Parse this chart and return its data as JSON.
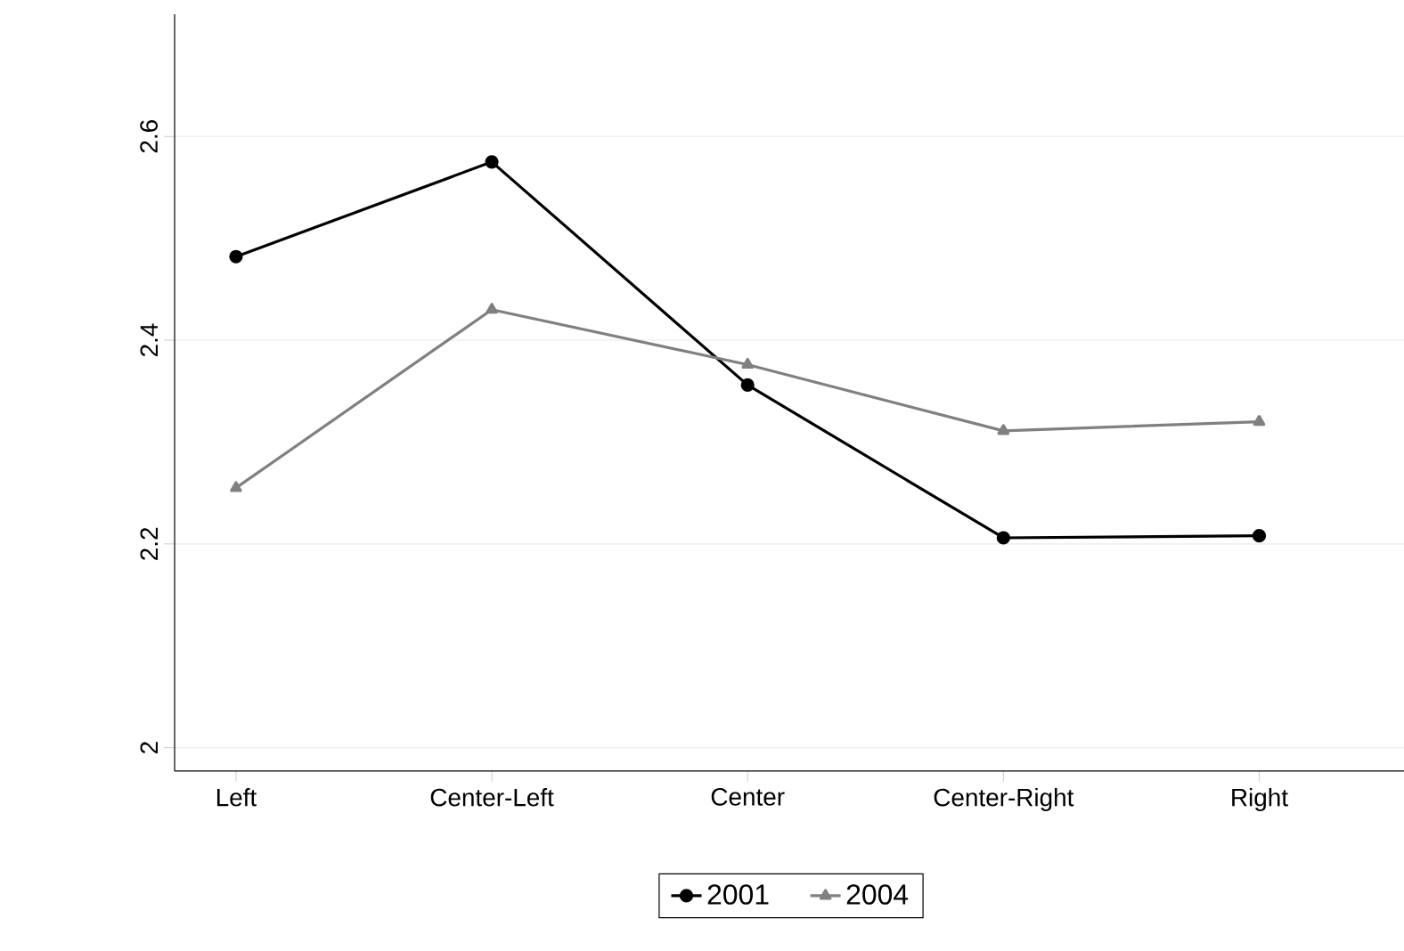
{
  "chart_data": {
    "type": "line",
    "categories": [
      "Left",
      "Center-Left",
      "Center",
      "Center-Right",
      "Right"
    ],
    "series": [
      {
        "name": "2001",
        "color": "#000000",
        "marker": "circle",
        "values": [
          2.482,
          2.575,
          2.356,
          2.206,
          2.208
        ]
      },
      {
        "name": "2004",
        "color": "#808080",
        "marker": "triangle",
        "values": [
          2.255,
          2.43,
          2.376,
          2.311,
          2.32
        ]
      }
    ],
    "ylim": [
      1.977,
      2.72
    ],
    "yticks": [
      2,
      2.2,
      2.4,
      2.6
    ],
    "grid": "y",
    "legend": "bottom",
    "line_style": "solid"
  }
}
